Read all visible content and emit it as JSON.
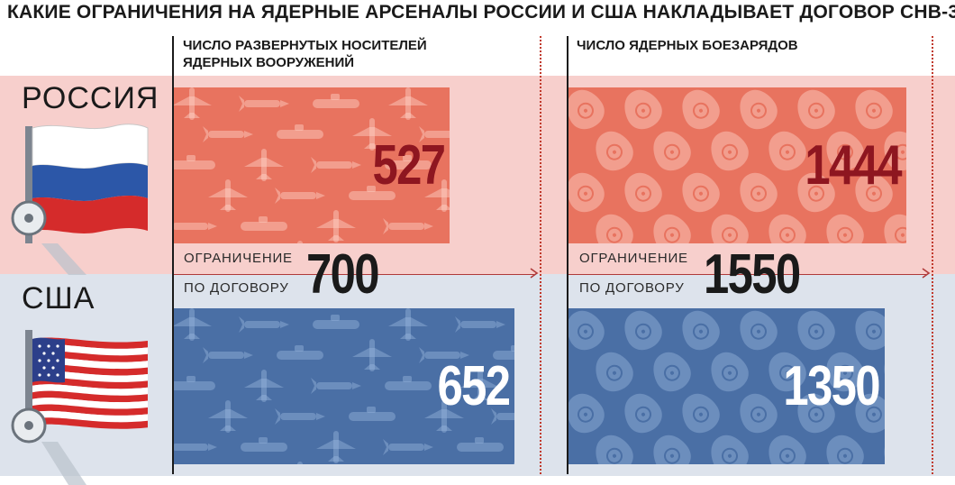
{
  "title": "КАКИЕ ОГРАНИЧЕНИЯ НА ЯДЕРНЫЕ АРСЕНАЛЫ РОССИИ И США НАКЛАДЫВАЕТ ДОГОВОР СНВ-3",
  "columns": {
    "carriers": {
      "line1": "ЧИСЛО РАЗВЕРНУТЫХ НОСИТЕЛЕЙ",
      "line2": "ЯДЕРНЫХ ВООРУЖЕНИЙ"
    },
    "warheads": {
      "line1": "ЧИСЛО ЯДЕРНЫХ БОЕЗАРЯДОВ"
    }
  },
  "countries": {
    "russia": "РОССИЯ",
    "usa": "США"
  },
  "limit": {
    "label_line1": "ОГРАНИЧЕНИЕ",
    "label_line2": "ПО ДОГОВОРУ"
  },
  "colors": {
    "russia_band": "#f7cfcc",
    "usa_band": "#dde3ec",
    "russia_bar": "#e8735f",
    "usa_bar": "#4a6fa5",
    "russia_value_text": "#8e1620",
    "usa_value_text": "#ffffff",
    "limit_line": "#b03a3a"
  },
  "icons": {
    "carriers_pattern": [
      "aircraft-icon",
      "submarine-icon",
      "missile-icon"
    ],
    "warheads_pattern": [
      "warhead-radiation-icon"
    ]
  },
  "chart_data": [
    {
      "type": "bar",
      "title": "ЧИСЛО РАЗВЕРНУТЫХ НОСИТЕЛЕЙ ЯДЕРНЫХ ВООРУЖЕНИЙ",
      "categories": [
        "РОССИЯ",
        "США"
      ],
      "values": [
        527,
        652
      ],
      "value_labels": [
        "527",
        "652"
      ],
      "limit": 700,
      "limit_label": "700",
      "orientation": "horizontal"
    },
    {
      "type": "bar",
      "title": "ЧИСЛО ЯДЕРНЫХ БОЕЗАРЯДОВ",
      "categories": [
        "РОССИЯ",
        "США"
      ],
      "values": [
        1444,
        1350
      ],
      "value_labels": [
        "1444",
        "1350"
      ],
      "limit": 1550,
      "limit_label": "1550",
      "orientation": "horizontal"
    }
  ]
}
